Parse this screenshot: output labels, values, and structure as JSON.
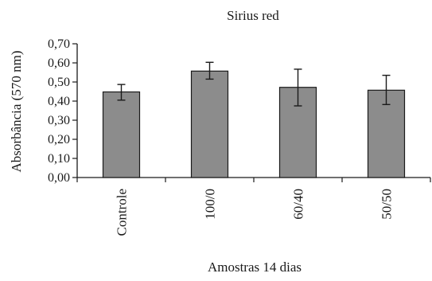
{
  "chart_data": {
    "type": "bar",
    "title": "Sirius red",
    "xlabel": "Amostras 14 dias",
    "ylabel": "Absorbância (570 nm)",
    "categories": [
      "Controle",
      "100/0",
      "60/40",
      "50/50"
    ],
    "values": [
      0.448,
      0.557,
      0.472,
      0.457
    ],
    "error_low": [
      0.405,
      0.515,
      0.375,
      0.382
    ],
    "error_high": [
      0.487,
      0.603,
      0.567,
      0.535
    ],
    "ylim": [
      0,
      0.7
    ],
    "yticks": [
      0.0,
      0.1,
      0.2,
      0.3,
      0.4,
      0.5,
      0.6,
      0.7
    ],
    "ytick_labels": [
      "0,00",
      "0,10",
      "0,20",
      "0,30",
      "0,40",
      "0,50",
      "0,60",
      "0,70"
    ],
    "grid": false,
    "legend": "none",
    "bar_color": "#8c8c8c",
    "bar_edge_color": "#1a1a1a",
    "axis_color": "#1a1a1a"
  }
}
